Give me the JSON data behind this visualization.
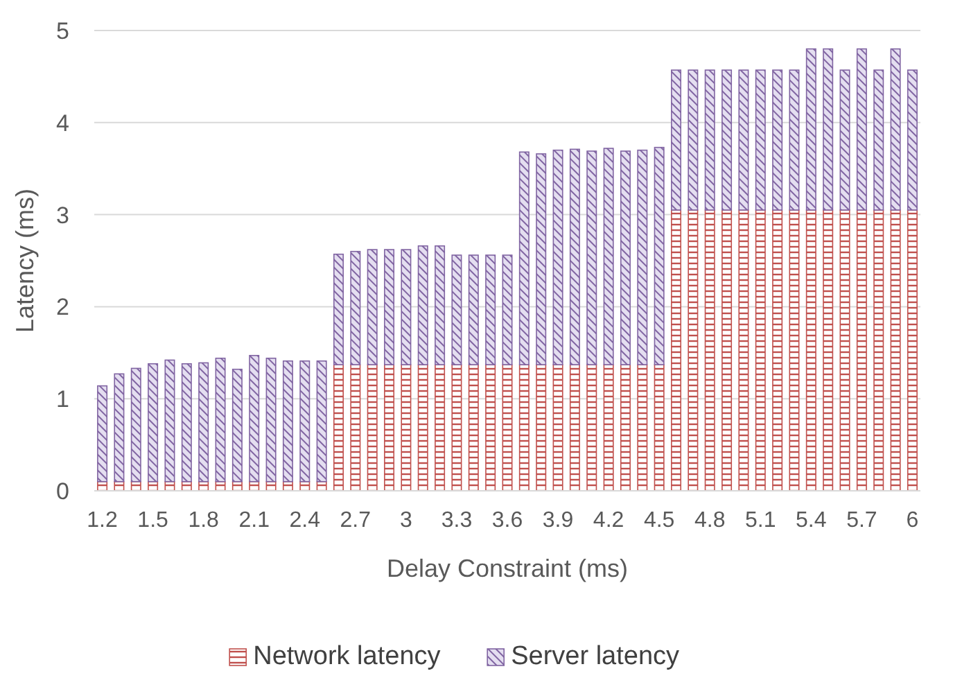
{
  "chart_data": {
    "type": "bar",
    "stacked": true,
    "xlabel": "Delay Constraint (ms)",
    "ylabel": "Latency (ms)",
    "categories": [
      "1.2",
      null,
      null,
      "1.5",
      null,
      null,
      "1.8",
      null,
      null,
      "2.1",
      null,
      null,
      "2.4",
      null,
      null,
      "2.7",
      null,
      null,
      "3",
      null,
      null,
      "3.3",
      null,
      null,
      "3.6",
      null,
      null,
      "3.9",
      null,
      null,
      "4.2",
      null,
      null,
      "4.5",
      null,
      null,
      "4.8",
      null,
      null,
      "5.1",
      null,
      null,
      "5.4",
      null,
      null,
      "5.7",
      null,
      null,
      "6"
    ],
    "series": [
      {
        "name": "Network latency",
        "color": "#c0504d",
        "values": [
          0.1,
          0.1,
          0.1,
          0.1,
          0.1,
          0.1,
          0.1,
          0.1,
          0.1,
          0.1,
          0.1,
          0.1,
          0.1,
          0.1,
          1.37,
          1.37,
          1.37,
          1.37,
          1.37,
          1.37,
          1.37,
          1.37,
          1.37,
          1.37,
          1.37,
          1.37,
          1.37,
          1.37,
          1.37,
          1.37,
          1.37,
          1.37,
          1.37,
          1.37,
          3.05,
          3.05,
          3.05,
          3.05,
          3.05,
          3.05,
          3.05,
          3.05,
          3.05,
          3.05,
          3.05,
          3.05,
          3.05,
          3.05,
          3.05
        ]
      },
      {
        "name": "Server latency",
        "color": "#8064a2",
        "values": [
          1.04,
          1.17,
          1.23,
          1.28,
          1.32,
          1.28,
          1.29,
          1.34,
          1.22,
          1.37,
          1.34,
          1.31,
          1.31,
          1.31,
          1.2,
          1.23,
          1.25,
          1.25,
          1.25,
          1.29,
          1.29,
          1.19,
          1.19,
          1.19,
          1.19,
          2.31,
          2.29,
          2.33,
          2.34,
          2.32,
          2.35,
          2.32,
          2.33,
          2.36,
          1.52,
          1.52,
          1.52,
          1.52,
          1.52,
          1.52,
          1.52,
          1.52,
          1.75,
          1.75,
          1.52,
          1.75,
          1.52,
          1.75,
          1.52
        ]
      }
    ],
    "ylim": [
      0,
      5
    ],
    "yticks": [
      0,
      1,
      2,
      3,
      4,
      5
    ],
    "grid": "y",
    "legend": "bottom"
  }
}
